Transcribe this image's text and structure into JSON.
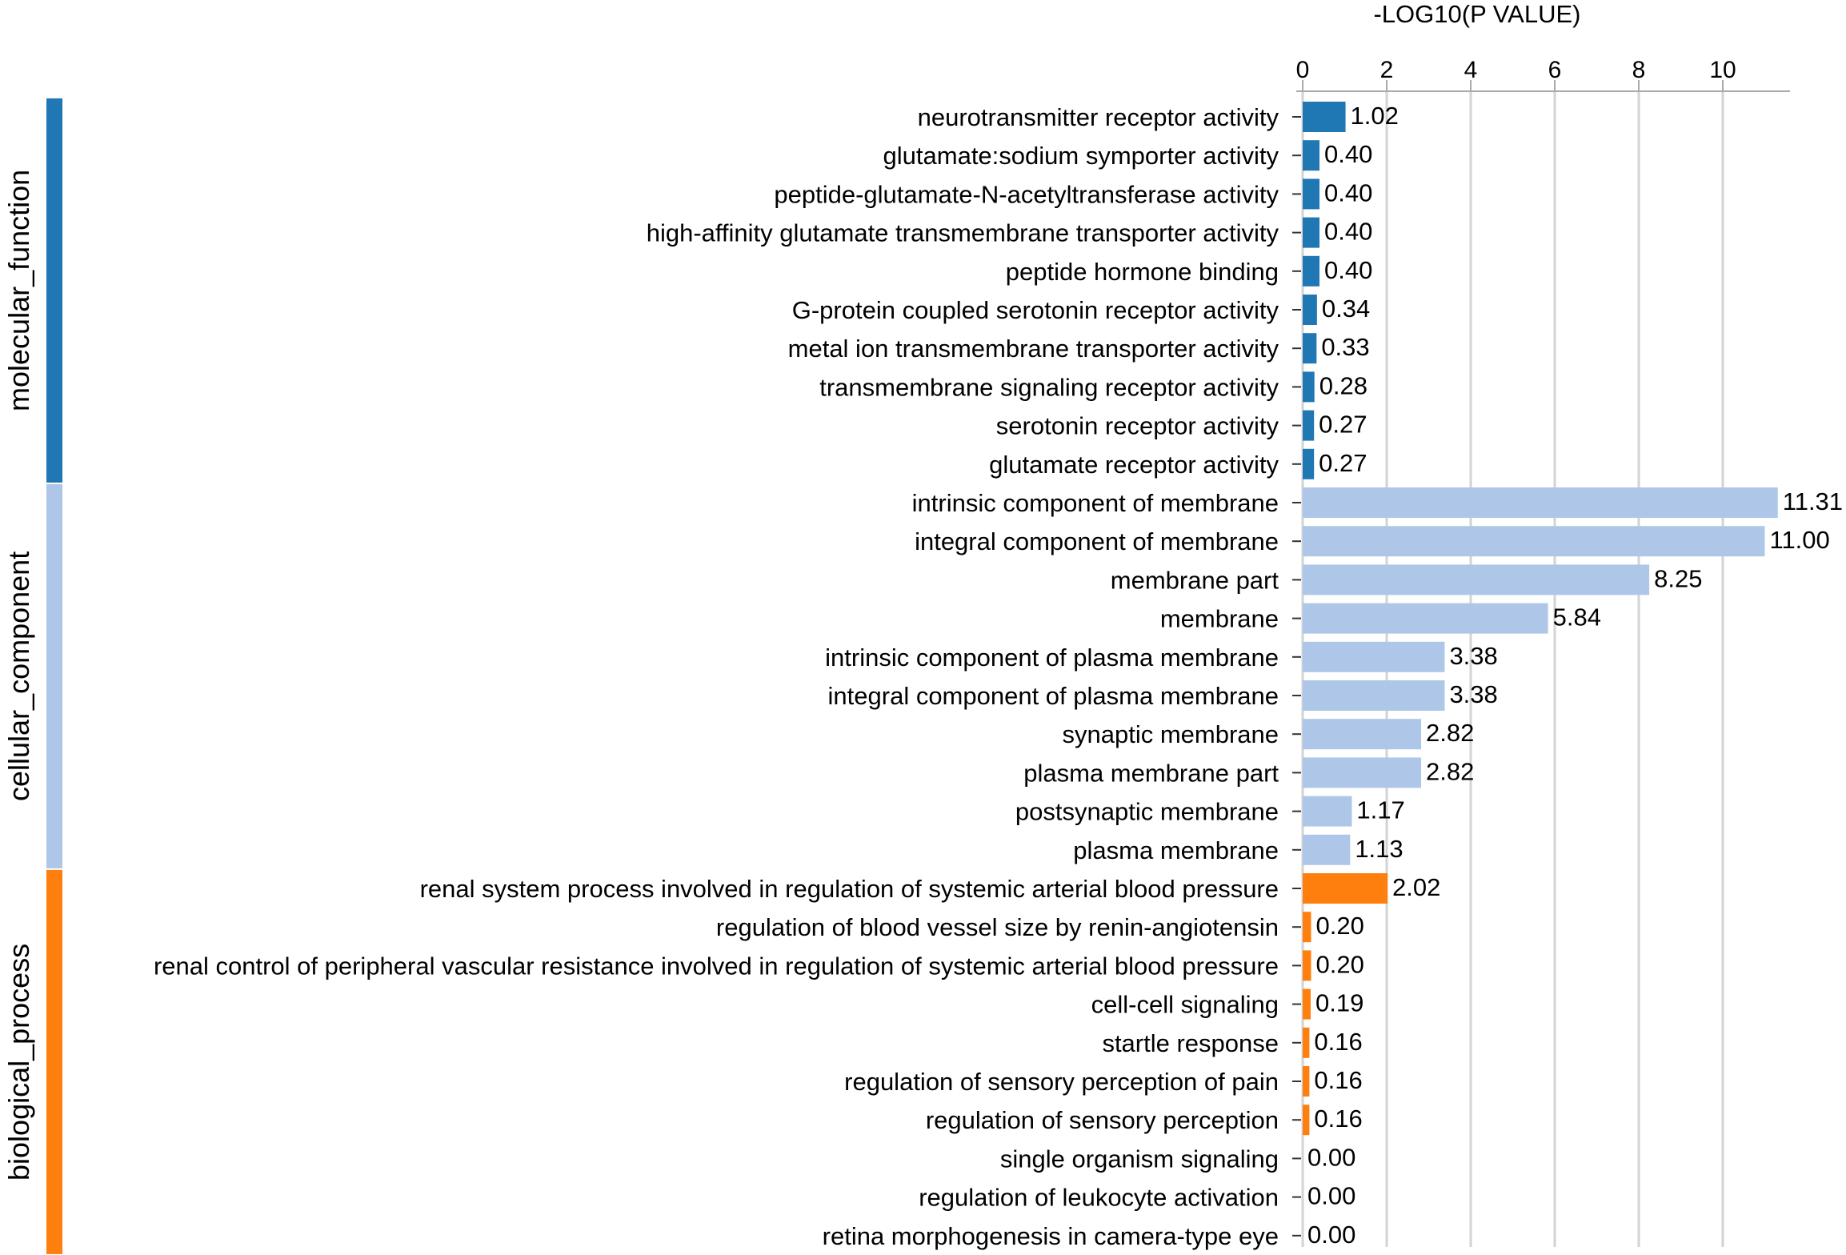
{
  "chart_data": {
    "type": "bar",
    "orientation": "horizontal",
    "title": "",
    "xlabel": "-LOG10(P VALUE)",
    "ylabel": "",
    "xlim": [
      0,
      11.8
    ],
    "xticks": [
      0,
      2,
      4,
      6,
      8,
      10
    ],
    "xtick_labels": [
      "0",
      "2",
      "4",
      "6",
      "8",
      "10"
    ],
    "x_axis_position": "top",
    "grid": "vertical",
    "colors": {
      "molecular_function": "#1f77b4",
      "cellular_component": "#aec7e8",
      "biological_process": "#ff7f0e",
      "grid": "#d3d3d3",
      "axis": "#a9a9a9"
    },
    "groups": [
      {
        "name": "molecular_function",
        "terms": [
          {
            "label": "neurotransmitter receptor activity",
            "value": 1.02,
            "value_label": "1.02"
          },
          {
            "label": "glutamate:sodium symporter activity",
            "value": 0.4,
            "value_label": "0.40"
          },
          {
            "label": "peptide-glutamate-N-acetyltransferase activity",
            "value": 0.4,
            "value_label": "0.40"
          },
          {
            "label": "high-affinity glutamate transmembrane transporter activity",
            "value": 0.4,
            "value_label": "0.40"
          },
          {
            "label": "peptide hormone binding",
            "value": 0.4,
            "value_label": "0.40"
          },
          {
            "label": "G-protein coupled serotonin receptor activity",
            "value": 0.34,
            "value_label": "0.34"
          },
          {
            "label": "metal ion transmembrane transporter activity",
            "value": 0.33,
            "value_label": "0.33"
          },
          {
            "label": "transmembrane signaling receptor activity",
            "value": 0.28,
            "value_label": "0.28"
          },
          {
            "label": "serotonin receptor activity",
            "value": 0.27,
            "value_label": "0.27"
          },
          {
            "label": "glutamate receptor activity",
            "value": 0.27,
            "value_label": "0.27"
          }
        ]
      },
      {
        "name": "cellular_component",
        "terms": [
          {
            "label": "intrinsic component of membrane",
            "value": 11.31,
            "value_label": "11.31"
          },
          {
            "label": "integral component of membrane",
            "value": 11.0,
            "value_label": "11.00"
          },
          {
            "label": "membrane part",
            "value": 8.25,
            "value_label": "8.25"
          },
          {
            "label": "membrane",
            "value": 5.84,
            "value_label": "5.84"
          },
          {
            "label": "intrinsic component of plasma membrane",
            "value": 3.38,
            "value_label": "3.38"
          },
          {
            "label": "integral component of plasma membrane",
            "value": 3.38,
            "value_label": "3.38"
          },
          {
            "label": "synaptic membrane",
            "value": 2.82,
            "value_label": "2.82"
          },
          {
            "label": "plasma membrane part",
            "value": 2.82,
            "value_label": "2.82"
          },
          {
            "label": "postsynaptic membrane",
            "value": 1.17,
            "value_label": "1.17"
          },
          {
            "label": "plasma membrane",
            "value": 1.13,
            "value_label": "1.13"
          }
        ]
      },
      {
        "name": "biological_process",
        "terms": [
          {
            "label": "renal system process involved in regulation of systemic arterial blood pressure",
            "value": 2.02,
            "value_label": "2.02"
          },
          {
            "label": "regulation of blood vessel size by renin-angiotensin",
            "value": 0.2,
            "value_label": "0.20"
          },
          {
            "label": "renal control of peripheral vascular resistance involved in regulation of systemic arterial blood pressure",
            "value": 0.2,
            "value_label": "0.20"
          },
          {
            "label": "cell-cell signaling",
            "value": 0.19,
            "value_label": "0.19"
          },
          {
            "label": "startle response",
            "value": 0.16,
            "value_label": "0.16"
          },
          {
            "label": "regulation of sensory perception of pain",
            "value": 0.16,
            "value_label": "0.16"
          },
          {
            "label": "regulation of sensory perception",
            "value": 0.16,
            "value_label": "0.16"
          },
          {
            "label": "single organism signaling",
            "value": 0.0,
            "value_label": "0.00"
          },
          {
            "label": "regulation of leukocyte activation",
            "value": 0.0,
            "value_label": "0.00"
          },
          {
            "label": "retina morphogenesis in camera-type eye",
            "value": 0.0,
            "value_label": "0.00"
          }
        ]
      }
    ]
  }
}
